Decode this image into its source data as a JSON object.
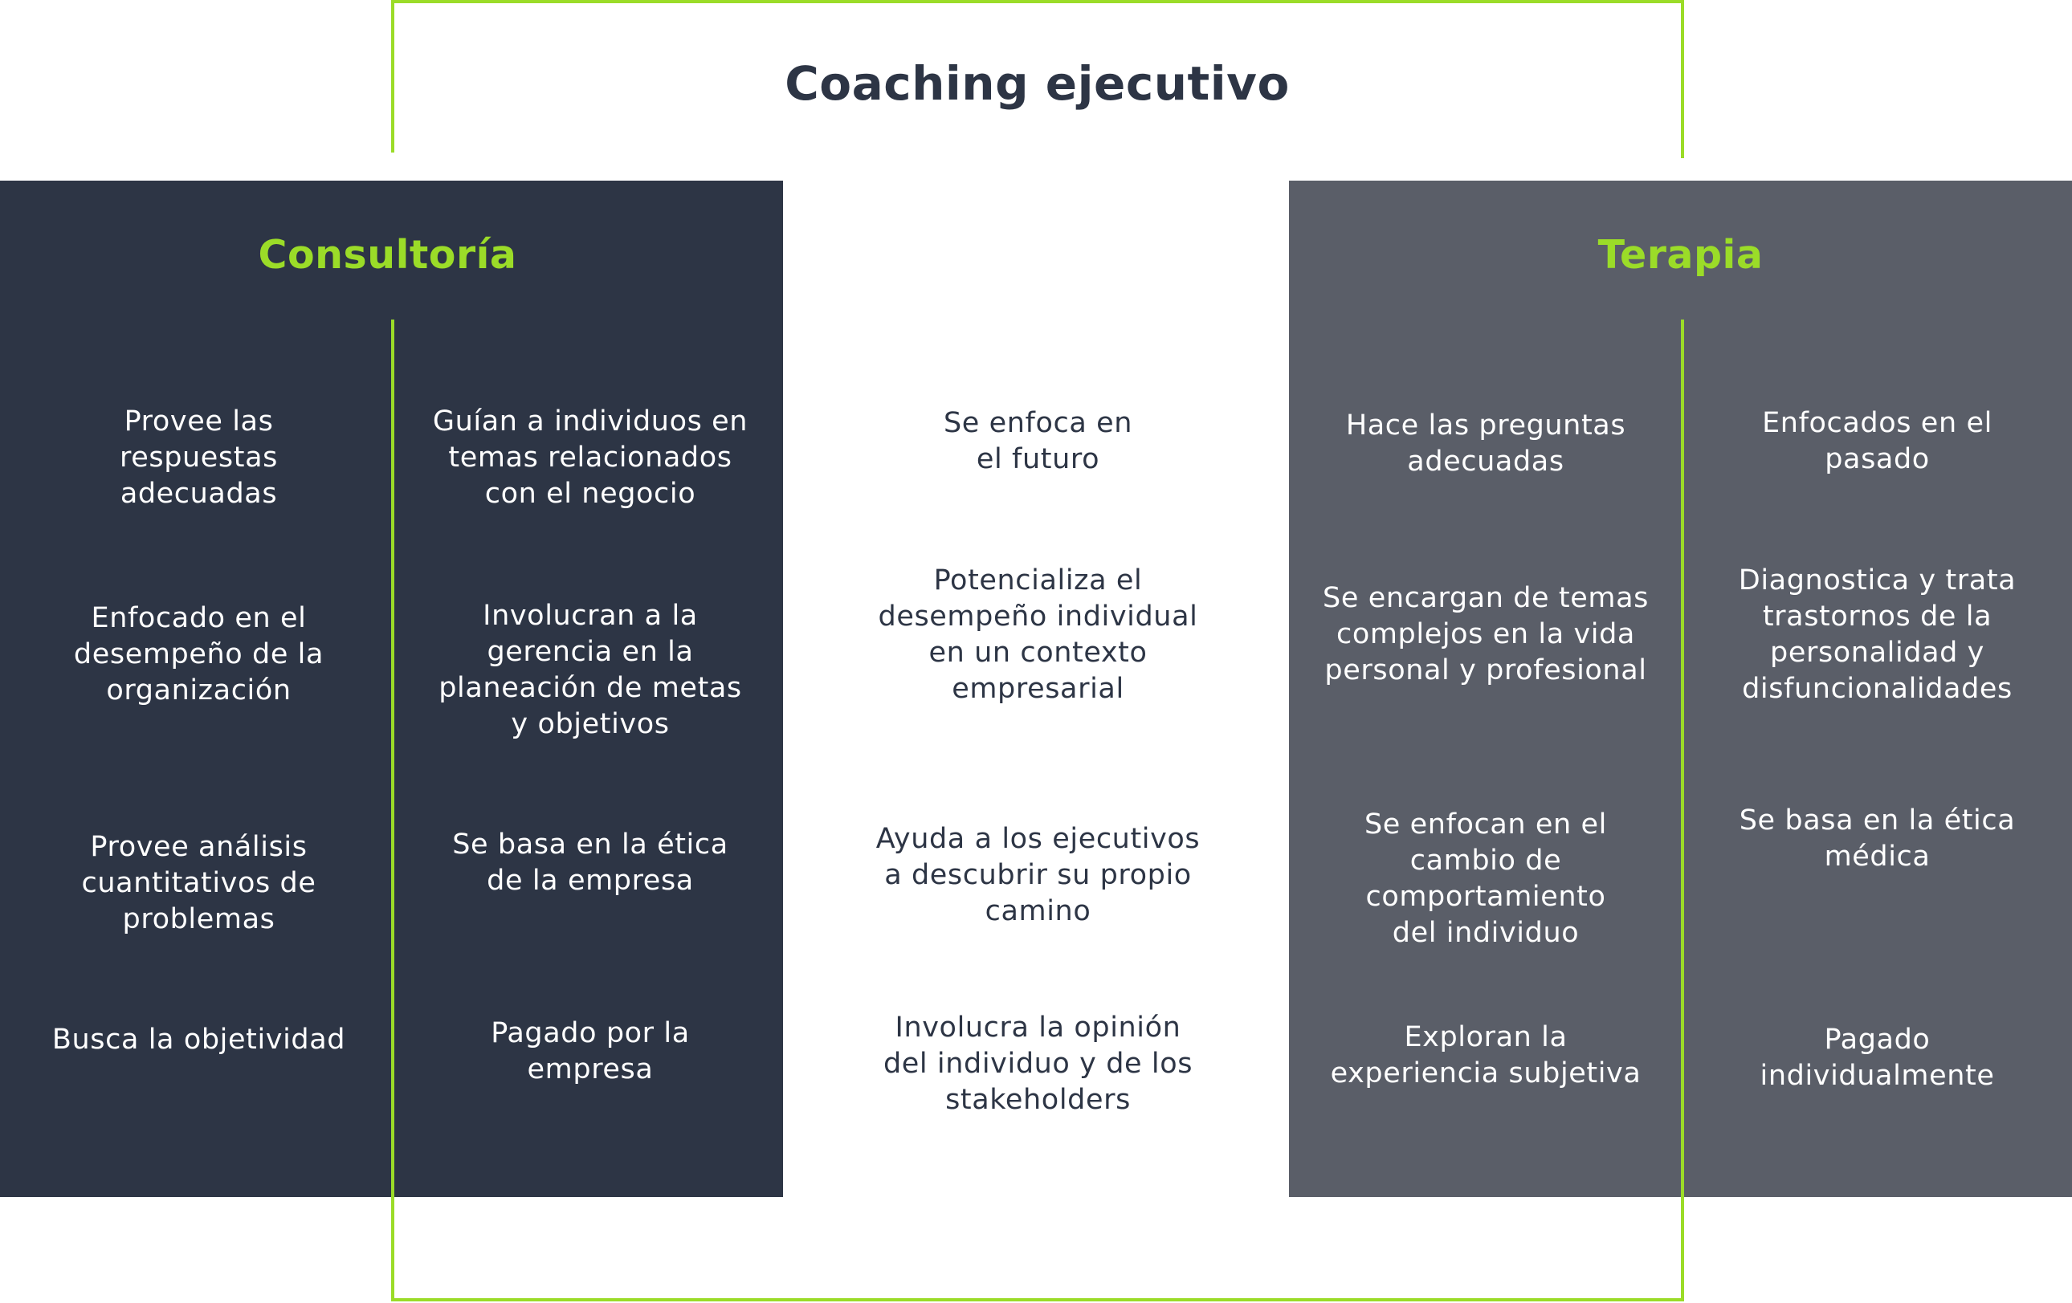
{
  "title": "Coaching ejecutivo",
  "colors": {
    "dark_panel": "#2d3545",
    "grey_panel": "#5a5e68",
    "accent_green": "#9bdc28",
    "text_dark": "#2d3545",
    "text_light": "#ffffff"
  },
  "consultoria": {
    "heading": "Consultoría",
    "col1": [
      "Provee las\nrespuestas\nadecuadas",
      "Enfocado en el\ndesempeño de la\norganización",
      "Provee análisis\ncuantitativos de\nproblemas",
      "Busca la objetividad"
    ],
    "col2": [
      "Guían a individuos en\ntemas relacionados\ncon el negocio",
      "Involucran a la\ngerencia en la\nplaneación de metas\ny objetivos",
      "Se basa en la ética\nde la empresa",
      "Pagado por la\nempresa"
    ]
  },
  "coaching": {
    "items": [
      "Se enfoca en\nel futuro",
      "Potencializa el\ndesempeño individual\nen un contexto\nempresarial",
      "Ayuda a los ejecutivos\na descubrir su propio\ncamino",
      "Involucra la opinión\ndel individuo y de los\nstakeholders"
    ]
  },
  "terapia": {
    "heading": "Terapia",
    "col1": [
      "Hace las preguntas\nadecuadas",
      "Se encargan de temas\ncomplejos en la vida\npersonal y profesional",
      "Se enfocan en el\ncambio de\ncomportamiento\ndel individuo",
      "Exploran la\nexperiencia subjetiva"
    ],
    "col2": [
      "Enfocados en el\npasado",
      "Diagnostica y trata\ntrastornos de la\npersonalidad y\ndisfuncionalidades",
      "Se basa en la ética\nmédica",
      "Pagado\nindividualmente"
    ]
  }
}
